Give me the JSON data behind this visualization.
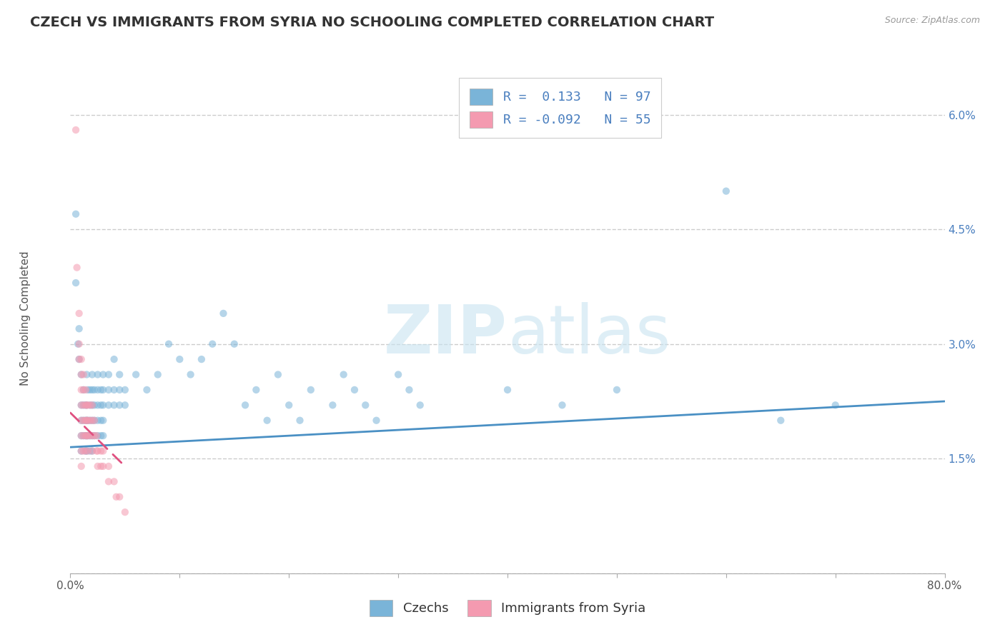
{
  "title": "CZECH VS IMMIGRANTS FROM SYRIA NO SCHOOLING COMPLETED CORRELATION CHART",
  "source": "Source: ZipAtlas.com",
  "ylabel": "No Schooling Completed",
  "xmin": 0.0,
  "xmax": 0.8,
  "ymin": 0.0,
  "ymax": 0.065,
  "xticks": [
    0.0,
    0.1,
    0.2,
    0.3,
    0.4,
    0.5,
    0.6,
    0.7,
    0.8
  ],
  "xticklabels": [
    "0.0%",
    "",
    "",
    "",
    "",
    "",
    "",
    "",
    "80.0%"
  ],
  "yticks": [
    0.0,
    0.015,
    0.03,
    0.045,
    0.06
  ],
  "yticklabels": [
    "",
    "1.5%",
    "3.0%",
    "4.5%",
    "6.0%"
  ],
  "watermark_text": "ZIPatlas",
  "czechs_color": "#7ab4d8",
  "syria_color": "#f49ab0",
  "czechs_line_color": "#4a90c4",
  "syria_line_color": "#e05080",
  "czechs_scatter": [
    [
      0.005,
      0.047
    ],
    [
      0.005,
      0.038
    ],
    [
      0.007,
      0.03
    ],
    [
      0.008,
      0.032
    ],
    [
      0.008,
      0.028
    ],
    [
      0.01,
      0.026
    ],
    [
      0.01,
      0.022
    ],
    [
      0.01,
      0.02
    ],
    [
      0.01,
      0.018
    ],
    [
      0.01,
      0.016
    ],
    [
      0.012,
      0.024
    ],
    [
      0.012,
      0.022
    ],
    [
      0.012,
      0.02
    ],
    [
      0.012,
      0.018
    ],
    [
      0.014,
      0.022
    ],
    [
      0.014,
      0.02
    ],
    [
      0.014,
      0.018
    ],
    [
      0.014,
      0.016
    ],
    [
      0.015,
      0.026
    ],
    [
      0.015,
      0.022
    ],
    [
      0.015,
      0.02
    ],
    [
      0.015,
      0.018
    ],
    [
      0.015,
      0.016
    ],
    [
      0.016,
      0.024
    ],
    [
      0.016,
      0.02
    ],
    [
      0.016,
      0.018
    ],
    [
      0.018,
      0.024
    ],
    [
      0.018,
      0.022
    ],
    [
      0.018,
      0.02
    ],
    [
      0.018,
      0.018
    ],
    [
      0.018,
      0.016
    ],
    [
      0.02,
      0.026
    ],
    [
      0.02,
      0.024
    ],
    [
      0.02,
      0.022
    ],
    [
      0.02,
      0.02
    ],
    [
      0.02,
      0.018
    ],
    [
      0.02,
      0.016
    ],
    [
      0.022,
      0.024
    ],
    [
      0.022,
      0.022
    ],
    [
      0.022,
      0.02
    ],
    [
      0.022,
      0.018
    ],
    [
      0.025,
      0.026
    ],
    [
      0.025,
      0.024
    ],
    [
      0.025,
      0.022
    ],
    [
      0.025,
      0.02
    ],
    [
      0.025,
      0.018
    ],
    [
      0.028,
      0.024
    ],
    [
      0.028,
      0.022
    ],
    [
      0.028,
      0.02
    ],
    [
      0.028,
      0.018
    ],
    [
      0.03,
      0.026
    ],
    [
      0.03,
      0.024
    ],
    [
      0.03,
      0.022
    ],
    [
      0.03,
      0.02
    ],
    [
      0.03,
      0.018
    ],
    [
      0.035,
      0.026
    ],
    [
      0.035,
      0.024
    ],
    [
      0.035,
      0.022
    ],
    [
      0.04,
      0.028
    ],
    [
      0.04,
      0.024
    ],
    [
      0.04,
      0.022
    ],
    [
      0.045,
      0.026
    ],
    [
      0.045,
      0.024
    ],
    [
      0.045,
      0.022
    ],
    [
      0.05,
      0.024
    ],
    [
      0.05,
      0.022
    ],
    [
      0.06,
      0.026
    ],
    [
      0.07,
      0.024
    ],
    [
      0.08,
      0.026
    ],
    [
      0.09,
      0.03
    ],
    [
      0.1,
      0.028
    ],
    [
      0.11,
      0.026
    ],
    [
      0.12,
      0.028
    ],
    [
      0.13,
      0.03
    ],
    [
      0.14,
      0.034
    ],
    [
      0.15,
      0.03
    ],
    [
      0.16,
      0.022
    ],
    [
      0.17,
      0.024
    ],
    [
      0.18,
      0.02
    ],
    [
      0.19,
      0.026
    ],
    [
      0.2,
      0.022
    ],
    [
      0.21,
      0.02
    ],
    [
      0.22,
      0.024
    ],
    [
      0.24,
      0.022
    ],
    [
      0.25,
      0.026
    ],
    [
      0.26,
      0.024
    ],
    [
      0.27,
      0.022
    ],
    [
      0.28,
      0.02
    ],
    [
      0.3,
      0.026
    ],
    [
      0.31,
      0.024
    ],
    [
      0.32,
      0.022
    ],
    [
      0.4,
      0.024
    ],
    [
      0.45,
      0.022
    ],
    [
      0.5,
      0.024
    ],
    [
      0.6,
      0.05
    ],
    [
      0.65,
      0.02
    ],
    [
      0.7,
      0.022
    ]
  ],
  "syria_scatter": [
    [
      0.005,
      0.058
    ],
    [
      0.006,
      0.04
    ],
    [
      0.008,
      0.034
    ],
    [
      0.008,
      0.03
    ],
    [
      0.008,
      0.028
    ],
    [
      0.01,
      0.028
    ],
    [
      0.01,
      0.026
    ],
    [
      0.01,
      0.024
    ],
    [
      0.01,
      0.022
    ],
    [
      0.01,
      0.02
    ],
    [
      0.01,
      0.018
    ],
    [
      0.01,
      0.016
    ],
    [
      0.01,
      0.014
    ],
    [
      0.012,
      0.026
    ],
    [
      0.012,
      0.024
    ],
    [
      0.012,
      0.022
    ],
    [
      0.012,
      0.02
    ],
    [
      0.012,
      0.018
    ],
    [
      0.012,
      0.016
    ],
    [
      0.014,
      0.024
    ],
    [
      0.014,
      0.022
    ],
    [
      0.014,
      0.02
    ],
    [
      0.014,
      0.018
    ],
    [
      0.014,
      0.016
    ],
    [
      0.015,
      0.022
    ],
    [
      0.015,
      0.02
    ],
    [
      0.015,
      0.018
    ],
    [
      0.016,
      0.022
    ],
    [
      0.016,
      0.02
    ],
    [
      0.016,
      0.018
    ],
    [
      0.016,
      0.016
    ],
    [
      0.018,
      0.022
    ],
    [
      0.018,
      0.02
    ],
    [
      0.018,
      0.018
    ],
    [
      0.02,
      0.022
    ],
    [
      0.02,
      0.02
    ],
    [
      0.02,
      0.018
    ],
    [
      0.02,
      0.016
    ],
    [
      0.022,
      0.02
    ],
    [
      0.022,
      0.018
    ],
    [
      0.024,
      0.018
    ],
    [
      0.024,
      0.016
    ],
    [
      0.025,
      0.016
    ],
    [
      0.025,
      0.014
    ],
    [
      0.028,
      0.016
    ],
    [
      0.028,
      0.014
    ],
    [
      0.03,
      0.016
    ],
    [
      0.03,
      0.014
    ],
    [
      0.035,
      0.014
    ],
    [
      0.035,
      0.012
    ],
    [
      0.04,
      0.012
    ],
    [
      0.042,
      0.01
    ],
    [
      0.045,
      0.01
    ],
    [
      0.05,
      0.008
    ]
  ],
  "czechs_line_x": [
    0.0,
    0.8
  ],
  "czechs_line_y": [
    0.0165,
    0.0225
  ],
  "syria_line_x": [
    0.0,
    0.05
  ],
  "syria_line_y": [
    0.021,
    0.014
  ],
  "background_color": "#ffffff",
  "grid_color": "#cccccc",
  "title_fontsize": 14,
  "label_fontsize": 11,
  "tick_fontsize": 11,
  "scatter_size": 55,
  "scatter_alpha": 0.55
}
